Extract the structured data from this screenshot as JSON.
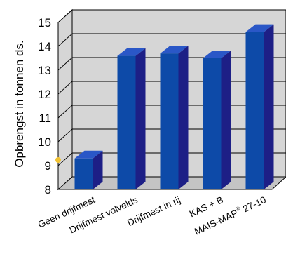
{
  "chart_data": {
    "type": "bar",
    "style": "3d",
    "title": "",
    "xlabel": "",
    "ylabel": "Opbrengst in tonnen ds.",
    "ylim": [
      8,
      15
    ],
    "yticks": [
      "8",
      "9",
      "10",
      "11",
      "12",
      "13",
      "14",
      "15"
    ],
    "grid": true,
    "categories": [
      "Geen drijfmest",
      "Drijfmest volvelds",
      "Drijfmest in rij",
      "KAS + B",
      "MAIS-MAP® 27-10"
    ],
    "values": [
      9.3,
      13.6,
      13.7,
      13.5,
      14.6
    ],
    "colors": {
      "bar_front": "#0d4aa8",
      "bar_side": "#1d1f86",
      "bar_top": "#2a57c7",
      "wall": "#d6d6d6",
      "floor": "#c4c4c4",
      "grid": "#000000",
      "label_mark": "#f1c232"
    }
  }
}
